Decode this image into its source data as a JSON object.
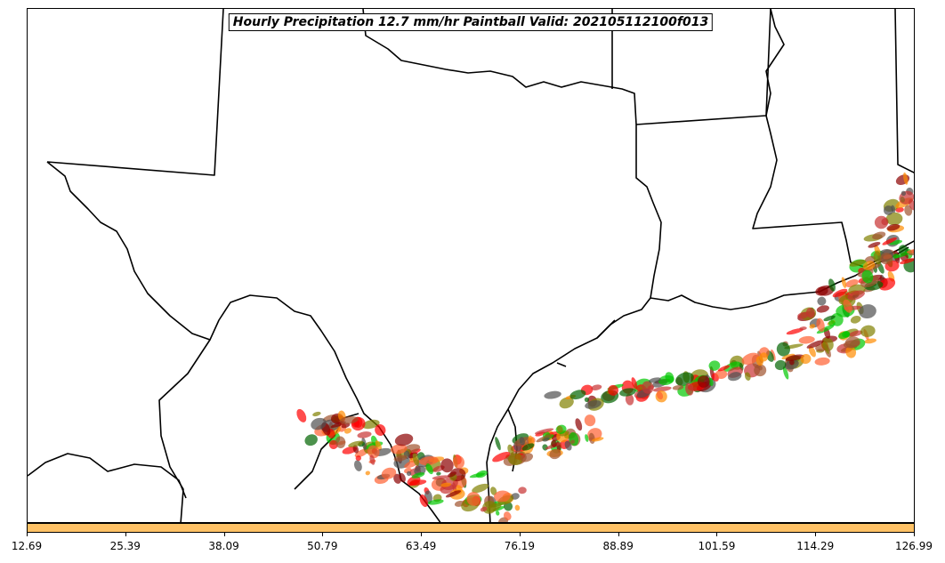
{
  "title": "Hourly Precipitation 12.7 mm/hr Paintball Valid: 202105112100f013",
  "colorbar": {
    "color": "#ffc266",
    "tick_labels": [
      "12.69",
      "25.39",
      "38.09",
      "50.79",
      "63.49",
      "76.19",
      "88.89",
      "101.59",
      "114.29",
      "126.99"
    ]
  },
  "paint_colors": [
    "#ff0000",
    "#ff8c00",
    "#808000",
    "#00c800",
    "#8b0000",
    "#006400",
    "#505050",
    "#a0522d",
    "#c83232",
    "#ff6030"
  ],
  "borders": {
    "stroke": "#000000"
  }
}
